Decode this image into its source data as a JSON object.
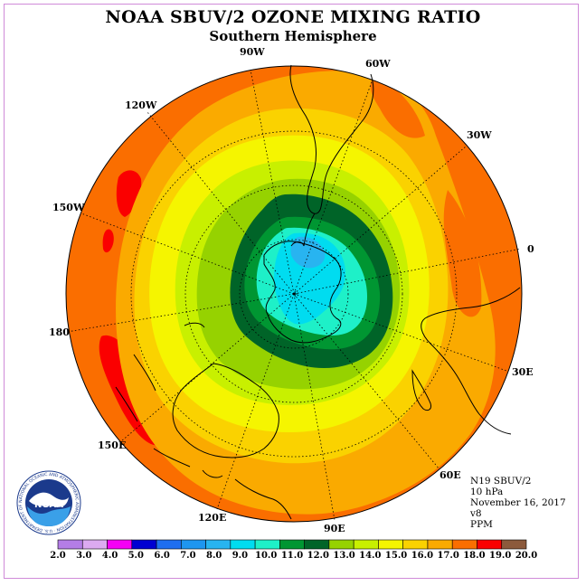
{
  "title": "NOAA SBUV/2 OZONE MIXING RATIO",
  "subtitle": "Southern Hemisphere",
  "longitude_labels": [
    "90W",
    "60W",
    "30W",
    "0",
    "30E",
    "60E",
    "90E",
    "120E",
    "150E",
    "180",
    "150W",
    "120W"
  ],
  "info": {
    "instrument": "N19 SBUV/2",
    "level": "10 hPa",
    "date": "November 16, 2017",
    "version": "v8",
    "units": "PPM"
  },
  "colorbar": {
    "labels": [
      "2.0",
      "3.0",
      "4.0",
      "5.0",
      "6.0",
      "7.0",
      "8.0",
      "9.0",
      "10.0",
      "11.0",
      "12.0",
      "13.0",
      "14.0",
      "15.0",
      "16.0",
      "17.0",
      "18.0",
      "19.0",
      "20.0"
    ],
    "colors": [
      "#b47de6",
      "#dcaaf0",
      "#f500f5",
      "#0000d2",
      "#1e6ef0",
      "#1e96f0",
      "#28b4f0",
      "#00dcf0",
      "#1ef0c8",
      "#009632",
      "#006428",
      "#96d200",
      "#c8f000",
      "#f5f500",
      "#fad200",
      "#faaa00",
      "#fa6e00",
      "#fa0000",
      "#8c5a3c"
    ]
  },
  "logo": {
    "text": "NOAA",
    "ring_text": "NATIONAL OCEANIC AND ATMOSPHERIC ADMINISTRATION · U.S. DEPARTMENT OF COMMERCE"
  },
  "map": {
    "projection": "polar stereographic, south pole",
    "variable": "ozone mixing ratio",
    "field_bands_ppm": [
      {
        "min": 17.0,
        "max": 18.0,
        "color": "#fa6e00"
      },
      {
        "min": 18.0,
        "max": 19.0,
        "color": "#fa0000"
      },
      {
        "min": 16.0,
        "max": 17.0,
        "color": "#faaa00"
      },
      {
        "min": 15.0,
        "max": 16.0,
        "color": "#fad200"
      },
      {
        "min": 14.0,
        "max": 15.0,
        "color": "#f5f500"
      },
      {
        "min": 13.0,
        "max": 14.0,
        "color": "#c8f000"
      },
      {
        "min": 12.0,
        "max": 13.0,
        "color": "#96d200"
      },
      {
        "min": 11.0,
        "max": 12.0,
        "color": "#006428"
      },
      {
        "min": 10.0,
        "max": 11.0,
        "color": "#009632"
      },
      {
        "min": 9.0,
        "max": 10.0,
        "color": "#1ef0c8"
      },
      {
        "min": 8.0,
        "max": 9.0,
        "color": "#00dcf0"
      }
    ]
  }
}
